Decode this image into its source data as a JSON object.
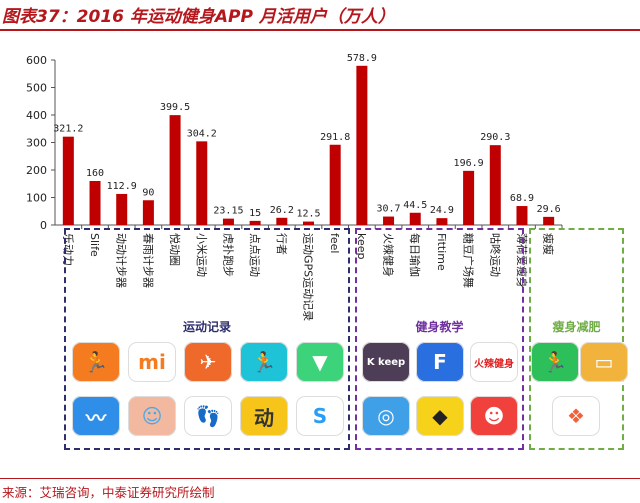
{
  "title": "图表37：2016 年运动健身APP 月活用户（万人）",
  "source": "来源：艾瑞咨询，中泰证券研究所绘制",
  "colors": {
    "bar": "#c00000",
    "accent": "#b5171c",
    "group1": "#2e2e6e",
    "group2": "#7030a0",
    "group3": "#70ad47"
  },
  "chart_data": {
    "type": "bar",
    "title": "",
    "xlabel": "",
    "ylabel": "",
    "ylim": [
      0,
      600
    ],
    "yticks": [
      0,
      100,
      200,
      300,
      400,
      500,
      600
    ],
    "grid": false,
    "legend": "none",
    "categories": [
      "乐动力",
      "Slife",
      "动动计步器",
      "春雨计步器",
      "悦动圈",
      "小米运动",
      "虎扑跑步",
      "点点运动",
      "行者",
      "运动GPS运动记录",
      "feel",
      "keep",
      "火辣健身",
      "每日瑜伽",
      "Fittime",
      "糖豆广场舞",
      "咕咚运动",
      "薄荷爱瘦身",
      "瘦瘦"
    ],
    "series": [
      {
        "values": [
          321.2,
          160,
          112.9,
          90,
          399.5,
          304.2,
          23.15,
          15,
          26.2,
          12.5,
          291.8,
          578.9,
          30.7,
          44.5,
          24.9,
          196.9,
          290.3,
          68.9,
          29.6
        ]
      }
    ],
    "data_labels": [
      "321.2",
      "160",
      "112.9",
      "90",
      "399.5",
      "304.2",
      "23.15",
      "15",
      "26.2",
      "12.5",
      "291.8",
      "578.9",
      "30.7",
      "44.5",
      "24.9",
      "196.9",
      "290.3",
      "68.9",
      "29.6"
    ],
    "groups": [
      {
        "name": "运动记录",
        "start": 0,
        "end": 9
      },
      {
        "name": "健身教学",
        "start": 10,
        "end": 15
      },
      {
        "name": "瘦身减肥",
        "start": 16,
        "end": 18
      }
    ]
  },
  "icons": [
    {
      "name": "ledongli-app-icon",
      "group": 0,
      "row": 0,
      "col": 0,
      "bg": "#f47b20",
      "glyph": "🏃",
      "text": "",
      "color": "#ffffff"
    },
    {
      "name": "xiaomi-sport-app-icon",
      "group": 0,
      "row": 0,
      "col": 1,
      "bg": "#ffffff",
      "glyph": "◠",
      "text": "mi",
      "color": "#f47b20"
    },
    {
      "name": "yuedongquan-app-icon",
      "group": 0,
      "row": 0,
      "col": 2,
      "bg": "#ef6a2a",
      "glyph": "✈",
      "text": "",
      "color": "#ffffff"
    },
    {
      "name": "runner-app-icon",
      "group": 0,
      "row": 0,
      "col": 3,
      "bg": "#1ec3d8",
      "glyph": "🏃",
      "text": "",
      "color": "#ffffff"
    },
    {
      "name": "dongdong-app-icon",
      "group": 0,
      "row": 0,
      "col": 4,
      "bg": "#3dd37a",
      "glyph": "▼",
      "text": "",
      "color": "#ffffff"
    },
    {
      "name": "line-chart-app-icon",
      "group": 0,
      "row": 1,
      "col": 0,
      "bg": "#2f8fe8",
      "glyph": "〰",
      "text": "",
      "color": "#ffffff"
    },
    {
      "name": "codoon-app-icon",
      "group": 0,
      "row": 1,
      "col": 1,
      "bg": "#f2b9a0",
      "glyph": "☺",
      "text": "",
      "color": "#4aa8e8"
    },
    {
      "name": "footprint-app-icon",
      "group": 0,
      "row": 1,
      "col": 2,
      "bg": "#ffffff",
      "glyph": "👣",
      "text": "",
      "color": "#4aa8e8"
    },
    {
      "name": "dong-app-icon",
      "group": 0,
      "row": 1,
      "col": 3,
      "bg": "#f7c51a",
      "glyph": "",
      "text": "动",
      "color": "#333333"
    },
    {
      "name": "swirl-app-icon",
      "group": 0,
      "row": 1,
      "col": 4,
      "bg": "#ffffff",
      "glyph": "S",
      "text": "",
      "color": "#2a9df4"
    },
    {
      "name": "keep-app-icon",
      "group": 1,
      "row": 0,
      "col": 0,
      "bg": "#4e3d56",
      "glyph": "",
      "text": "K keep",
      "color": "#ffffff"
    },
    {
      "name": "fittime-app-icon",
      "group": 1,
      "row": 0,
      "col": 1,
      "bg": "#2a6fe0",
      "glyph": "",
      "text": "F",
      "color": "#ffffff"
    },
    {
      "name": "huolajianshen-app-icon",
      "group": 1,
      "row": 0,
      "col": 2,
      "bg": "#ffffff",
      "glyph": "",
      "text": "火辣健身",
      "color": "#e02020"
    },
    {
      "name": "yoga-app-icon",
      "group": 1,
      "row": 1,
      "col": 0,
      "bg": "#3fa0e8",
      "glyph": "◎",
      "text": "",
      "color": "#ffffff"
    },
    {
      "name": "diamond-app-icon",
      "group": 1,
      "row": 1,
      "col": 1,
      "bg": "#f7d21a",
      "glyph": "◆",
      "text": "",
      "color": "#222222"
    },
    {
      "name": "tangdou-app-icon",
      "group": 1,
      "row": 1,
      "col": 2,
      "bg": "#f0413d",
      "glyph": "☻",
      "text": "",
      "color": "#ffffff"
    },
    {
      "name": "codoon-green-app-icon",
      "group": 2,
      "row": 0,
      "col": 0,
      "bg": "#2dbf5a",
      "glyph": "🏃",
      "text": "",
      "color": "#ffffff"
    },
    {
      "name": "wallet-app-icon",
      "group": 2,
      "row": 0,
      "col": 1,
      "bg": "#f2b33d",
      "glyph": "▭",
      "text": "",
      "color": "#ffffff"
    },
    {
      "name": "feather-app-icon",
      "group": 2,
      "row": 1,
      "col": 0,
      "bg": "#ffffff",
      "glyph": "❖",
      "text": "",
      "color": "#f0603a"
    }
  ]
}
